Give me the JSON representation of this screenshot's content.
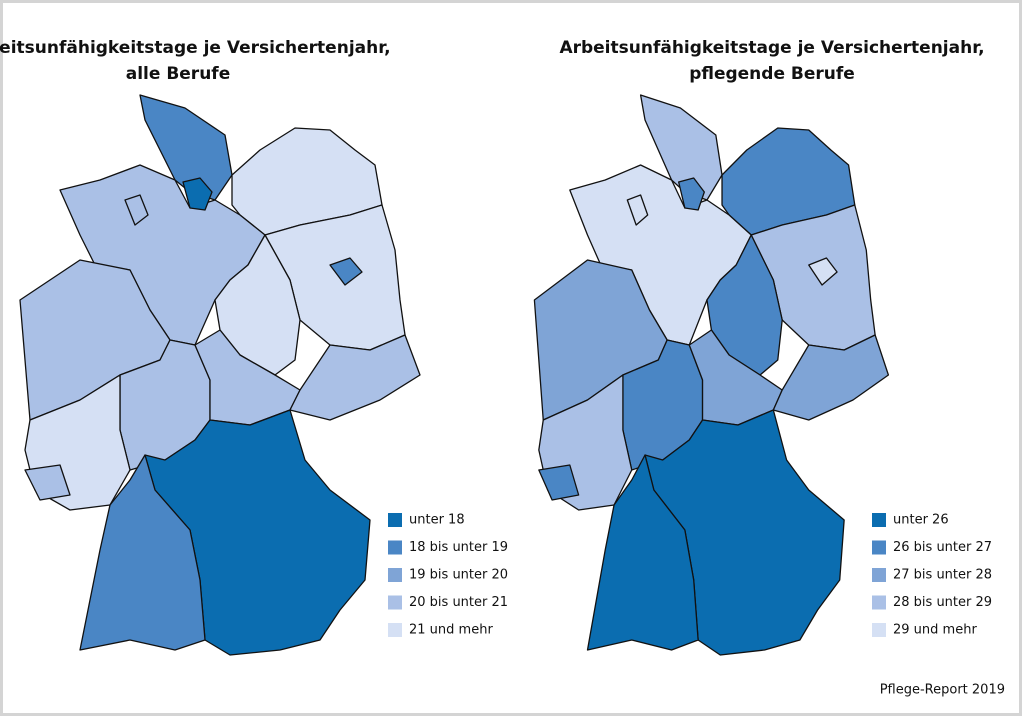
{
  "maps": [
    {
      "title_lines": [
        "Arbeitsunfähigkeitstage je Versichertenjahr,",
        "alle Berufe"
      ],
      "legend": [
        {
          "label": "unter 18",
          "color": "#0b6db0"
        },
        {
          "label": "18 bis unter 19",
          "color": "#4a86c5"
        },
        {
          "label": "19 bis unter 20",
          "color": "#7fa4d6"
        },
        {
          "label": "20 bis unter 21",
          "color": "#aac0e6"
        },
        {
          "label": "21 und mehr",
          "color": "#d5e0f4"
        }
      ]
    },
    {
      "title_lines": [
        "Arbeitsunfähigkeitstage je Versichertenjahr,",
        "pflegende Berufe"
      ],
      "legend": [
        {
          "label": "unter 26",
          "color": "#0b6db0"
        },
        {
          "label": "26 bis unter 27",
          "color": "#4a86c5"
        },
        {
          "label": "27 bis unter 28",
          "color": "#7fa4d6"
        },
        {
          "label": "28 bis unter 29",
          "color": "#aac0e6"
        },
        {
          "label": "29 und mehr",
          "color": "#d5e0f4"
        }
      ]
    }
  ],
  "source": "Pflege-Report 2019"
}
